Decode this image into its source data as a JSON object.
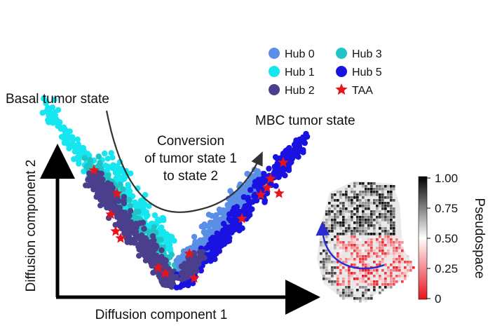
{
  "chart_data": [
    {
      "type": "scatter",
      "xlabel": "Diffusion component 1",
      "ylabel": "Diffusion component 2",
      "grid": false,
      "legend_placement": "top-right",
      "annotations": {
        "left_state": "Basal tumor state",
        "right_state": "MBC tumor state",
        "conversion_lines": [
          "Conversion",
          "of tumor state 1",
          "to state 2"
        ]
      },
      "series": [
        {
          "name": "Hub 0",
          "color": "#5b8ee6",
          "marker": "circle"
        },
        {
          "name": "Hub 1",
          "color": "#16e6ef",
          "marker": "circle"
        },
        {
          "name": "Hub 2",
          "color": "#4a3f8c",
          "marker": "circle"
        },
        {
          "name": "Hub 3",
          "color": "#1fc4c4",
          "marker": "circle"
        },
        {
          "name": "Hub 5",
          "color": "#1a12e0",
          "marker": "circle"
        },
        {
          "name": "TAA",
          "color": "#e8141c",
          "marker": "star"
        }
      ],
      "legend_order": [
        "Hub 0",
        "Hub 1",
        "Hub 2",
        "Hub 3",
        "Hub 5",
        "TAA"
      ]
    },
    {
      "type": "heatmap",
      "colorbar": {
        "label": "Pseudospace",
        "ticks": [
          "1.00",
          "0.75",
          "0.50",
          "0.25",
          "0"
        ],
        "range": [
          0,
          1
        ],
        "colors": [
          "#e8141c",
          "#ffffff",
          "#000000"
        ]
      }
    }
  ]
}
